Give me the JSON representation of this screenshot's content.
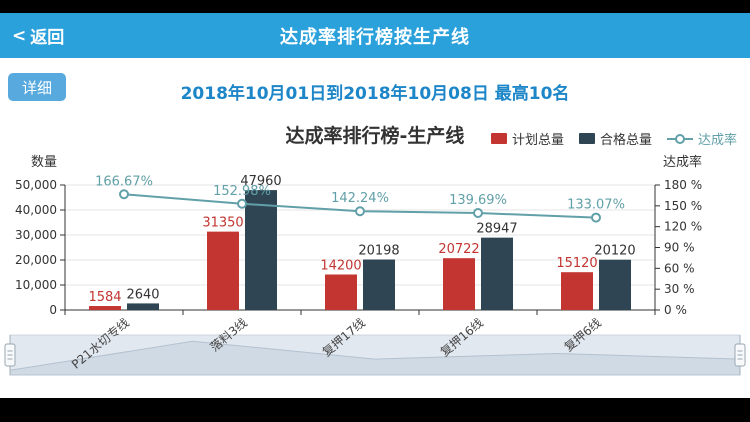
{
  "header": {
    "back_chevron": "<",
    "back_label": "返回",
    "title": "达成率排行榜按生产线"
  },
  "toolbar": {
    "detail_label": "详细"
  },
  "subtitle": "2018年10月01日到2018年10月08日 最高10名",
  "chart_data": {
    "type": "bar",
    "title": "达成率排行榜-生产线",
    "categories": [
      "P21水切专线",
      "落料3线",
      "复押17线",
      "复押16线",
      "复押6线"
    ],
    "series": [
      {
        "name": "计划总量",
        "type": "bar",
        "color": "#c23531",
        "values": [
          1584,
          31350,
          14200,
          20722,
          15120
        ]
      },
      {
        "name": "合格总量",
        "type": "bar",
        "color": "#2f4554",
        "values": [
          2640,
          47960,
          20198,
          28947,
          20120
        ]
      },
      {
        "name": "达成率",
        "type": "line",
        "color": "#61a0a8",
        "values_percent": [
          166.67,
          152.98,
          142.24,
          139.69,
          133.07
        ]
      }
    ],
    "left_axis": {
      "title": "数量",
      "min": 0,
      "max": 50000,
      "tick_step": 10000,
      "tick_labels": [
        "0",
        "10,000",
        "20,000",
        "30,000",
        "40,000",
        "50,000"
      ]
    },
    "right_axis": {
      "title": "达成率",
      "min": 0,
      "max": 180,
      "tick_step": 30,
      "unit": "%",
      "tick_labels": [
        "0 %",
        "30 %",
        "60 %",
        "90 %",
        "120 %",
        "150 %",
        "180 %"
      ]
    },
    "legend_position": "top-right",
    "grid": true,
    "datazoom": true
  }
}
